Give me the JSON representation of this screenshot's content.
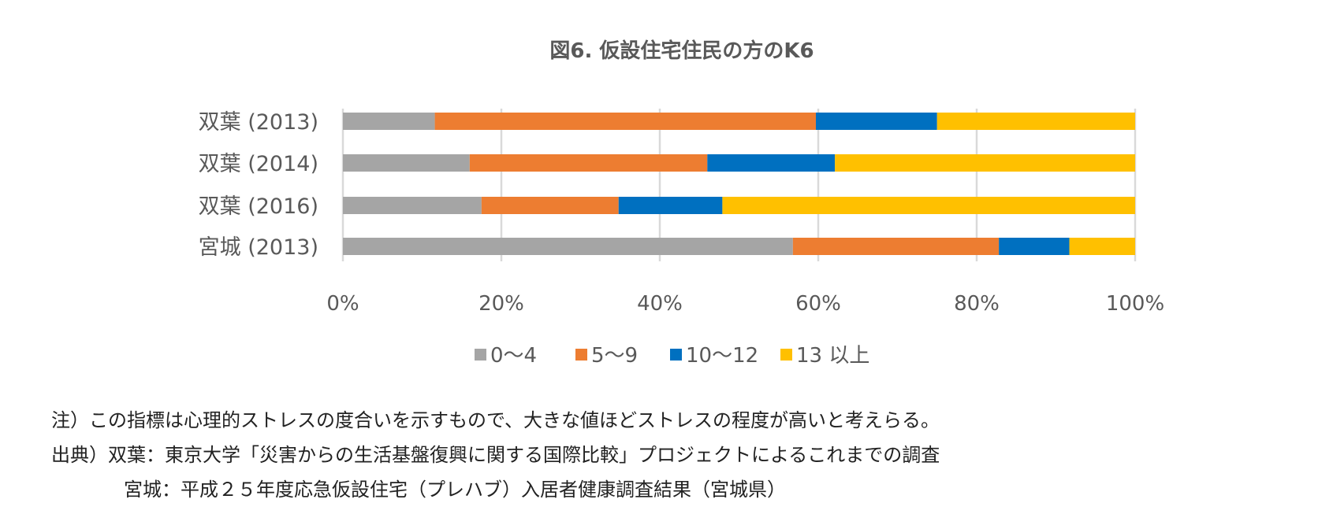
{
  "chart_data": {
    "type": "bar",
    "orientation": "horizontal",
    "stacked": "percent",
    "title": "図6. 仮設住宅住民の方のK6",
    "categories": [
      "双葉 (2013)",
      "双葉 (2014)",
      "双葉 (2016)",
      "宮城 (2013)"
    ],
    "series": [
      {
        "name": "0～4",
        "color": "#a5a5a5",
        "values": [
          11.6,
          16.0,
          17.5,
          56.8
        ]
      },
      {
        "name": "5～9",
        "color": "#ed7d31",
        "values": [
          48.1,
          30.0,
          17.3,
          26.0
        ]
      },
      {
        "name": "10～12",
        "color": "#0070c0",
        "values": [
          15.3,
          16.1,
          13.1,
          8.9
        ]
      },
      {
        "name": "13 以上",
        "color": "#ffc000",
        "values": [
          25.0,
          37.9,
          52.1,
          8.3
        ]
      }
    ],
    "xlim": [
      0,
      100
    ],
    "x_ticks": [
      "0%",
      "20%",
      "40%",
      "60%",
      "80%",
      "100%"
    ],
    "grid": "vertical",
    "legend": "bottom"
  },
  "notes": [
    "注）この指標は心理的ストレスの度合いを示すもので、大きな値ほどストレスの程度が高いと考えらる。",
    "出典）双葉：東京大学「災害からの生活基盤復興に関する国際比較」プロジェクトによるこれまでの調査",
    "宮城：平成２５年度応急仮設住宅（プレハブ）入居者健康調査結果（宮城県）"
  ]
}
